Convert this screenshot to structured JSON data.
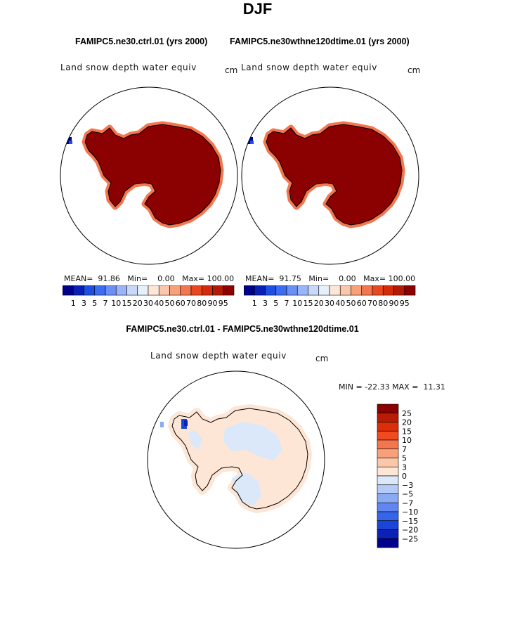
{
  "title": "DJF",
  "panels": [
    {
      "case_title": "FAMIPC5.ne30.ctrl.01 (yrs 2000)",
      "variable": "Land snow depth water equiv",
      "units": "cm",
      "mean_label": "MEAN=",
      "mean_value": "91.86",
      "min_label": "Min=",
      "min_value": "0.00",
      "max_label": "Max=",
      "max_value": "100.00"
    },
    {
      "case_title": "FAMIPC5.ne30wthne120dtime.01 (yrs 2000)",
      "variable": "Land snow depth water equiv",
      "units": "cm",
      "mean_label": "MEAN=",
      "mean_value": "91.75",
      "min_label": "Min=",
      "min_value": "0.00",
      "max_label": "Max=",
      "max_value": "100.00"
    }
  ],
  "top_colorbar": {
    "labels": [
      "1",
      "3",
      "5",
      "7",
      "10",
      "15",
      "20",
      "30",
      "40",
      "50",
      "60",
      "70",
      "80",
      "90",
      "95"
    ],
    "colors": [
      "#00008b",
      "#0a1fb4",
      "#1e4fe0",
      "#3c6cf0",
      "#6a90f5",
      "#99b4f7",
      "#c8d8f8",
      "#e6f0fb",
      "#fde6d6",
      "#fbc7aa",
      "#f8a07a",
      "#f4764e",
      "#e8471f",
      "#d22c0a",
      "#b21a05",
      "#8b0000"
    ]
  },
  "diff_panel": {
    "title": "FAMIPC5.ne30.ctrl.01 - FAMIPC5.ne30wthne120dtime.01",
    "variable": "Land snow depth water equiv",
    "units": "cm",
    "min_label": "MIN =",
    "min_value": "-22.33",
    "max_label": "MAX =",
    "max_value": "11.31"
  },
  "diff_colorbar": {
    "labels": [
      "25",
      "20",
      "15",
      "10",
      "7",
      "5",
      "3",
      "0",
      "−3",
      "−5",
      "−7",
      "−10",
      "−15",
      "−20",
      "−25"
    ],
    "colors": [
      "#8b0000",
      "#b81c05",
      "#dc2e08",
      "#f04a1e",
      "#f4764e",
      "#f8a07a",
      "#fbc7aa",
      "#fde6d6",
      "#dbe8fa",
      "#b4cbf7",
      "#8aaaf4",
      "#5f87ef",
      "#3566ea",
      "#1a45d8",
      "#0b22b4",
      "#00008b"
    ]
  },
  "colors": {
    "antarctic_fill": "#8b0000",
    "diff_positive": "#fde6d6",
    "diff_negative": "#dbe8fa"
  }
}
